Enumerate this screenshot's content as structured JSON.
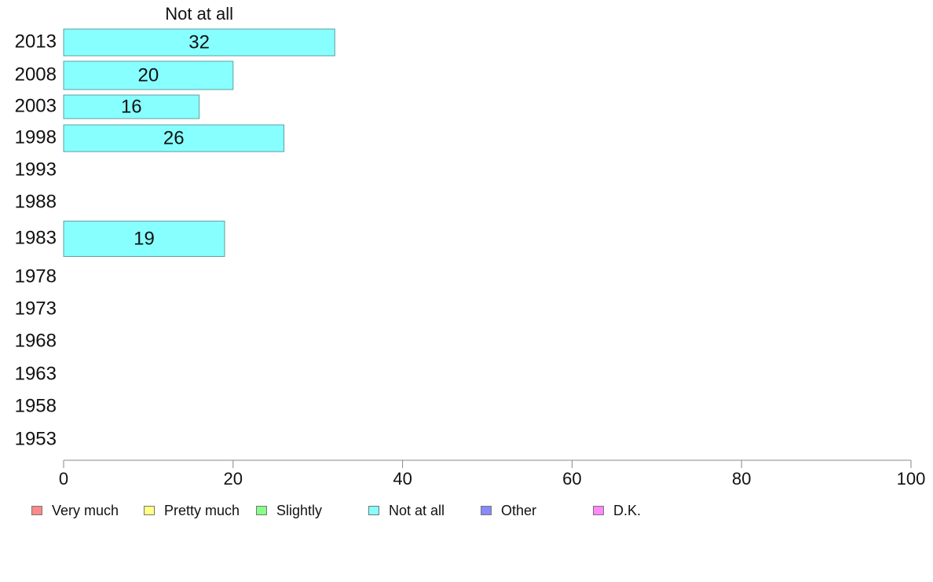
{
  "chart_data": {
    "type": "bar",
    "orientation": "horizontal",
    "title": "Not at all",
    "categories": [
      "2013",
      "2008",
      "2003",
      "1998",
      "1993",
      "1988",
      "1983",
      "1978",
      "1973",
      "1968",
      "1963",
      "1958",
      "1953"
    ],
    "series": [
      {
        "name": "Not at all",
        "color": "#88ffff",
        "values": [
          32,
          20,
          16,
          26,
          null,
          null,
          19,
          null,
          null,
          null,
          null,
          null,
          null
        ]
      }
    ],
    "x_ticks": [
      0,
      20,
      40,
      60,
      80,
      100
    ],
    "xlim": [
      0,
      100
    ],
    "grid": false,
    "legend": {
      "position": "bottom-left",
      "items": [
        {
          "label": "Very much",
          "color": "#ff8888"
        },
        {
          "label": "Pretty much",
          "color": "#ffff88"
        },
        {
          "label": "Slightly",
          "color": "#88ff88"
        },
        {
          "label": "Not at all",
          "color": "#88ffff"
        },
        {
          "label": "Other",
          "color": "#8888ff"
        },
        {
          "label": "D.K.",
          "color": "#ff88ff"
        }
      ]
    }
  }
}
